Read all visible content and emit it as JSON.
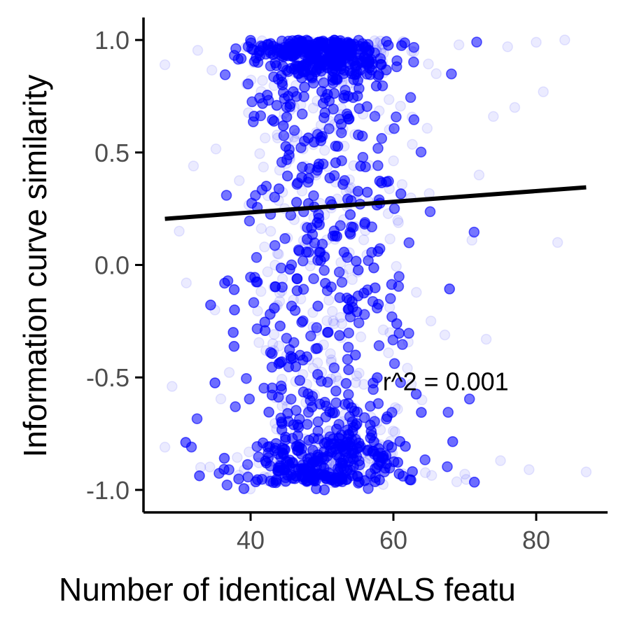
{
  "chart_data": {
    "type": "scatter",
    "xlabel": "Number of identical WALS featu",
    "ylabel": "Information curve similarity",
    "xlim": [
      25,
      90
    ],
    "ylim": [
      -1.1,
      1.1
    ],
    "x_ticks": [
      {
        "value": 40,
        "label": "40"
      },
      {
        "value": 60,
        "label": "60"
      },
      {
        "value": 80,
        "label": "80"
      }
    ],
    "y_ticks": [
      {
        "value": -1.0,
        "label": "-1.0"
      },
      {
        "value": -0.5,
        "label": "-0.5"
      },
      {
        "value": 0.0,
        "label": "0.0"
      },
      {
        "value": 0.5,
        "label": "0.5"
      },
      {
        "value": 1.0,
        "label": "1.0"
      }
    ],
    "point_color": "#0000ff",
    "point_alpha": 0.08,
    "line_color": "#000000",
    "fit_line": {
      "x": [
        28,
        87
      ],
      "y": [
        0.205,
        0.345
      ]
    },
    "annotation": {
      "text": "r^2 = 0.001",
      "x": 58.5,
      "y": -0.52
    },
    "grid": false,
    "legend": "none",
    "sample_points": [
      [
        28,
        0.89
      ],
      [
        84,
        1.0
      ],
      [
        80,
        0.99
      ],
      [
        76,
        0.97
      ],
      [
        81,
        0.77
      ],
      [
        77,
        0.7
      ],
      [
        83,
        0.1
      ],
      [
        79,
        -0.91
      ],
      [
        87,
        -0.92
      ],
      [
        28,
        -0.81
      ],
      [
        29,
        -0.54
      ],
      [
        31,
        -0.08
      ],
      [
        70,
        -0.93
      ],
      [
        75,
        -0.87
      ],
      [
        73,
        -0.33
      ],
      [
        74,
        0.66
      ],
      [
        72,
        0.4
      ],
      [
        32,
        0.44
      ],
      [
        30,
        0.15
      ],
      [
        71,
        0.11
      ],
      [
        64,
        -0.6
      ],
      [
        35,
        -0.2
      ],
      [
        33,
        -0.9
      ],
      [
        66,
        0.85
      ]
    ]
  }
}
